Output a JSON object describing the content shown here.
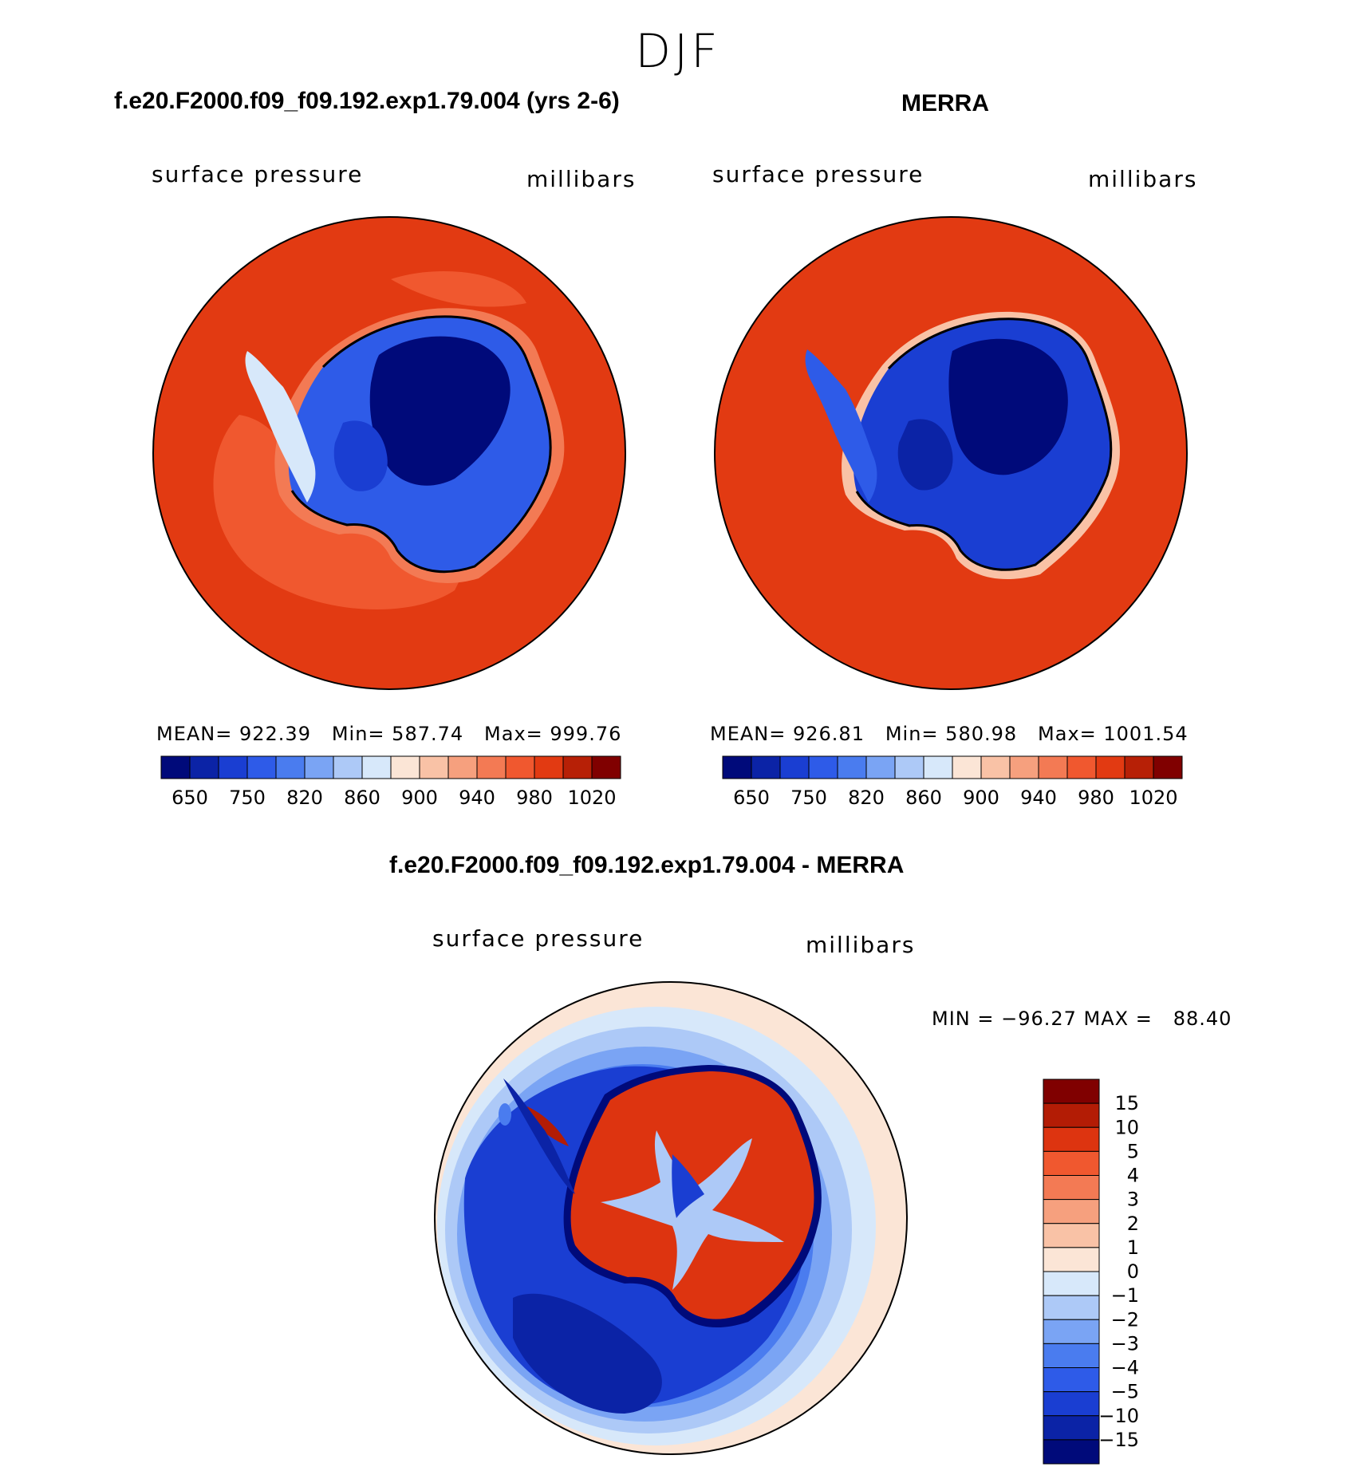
{
  "season": "DJF",
  "panels": [
    {
      "title": "f.e20.F2000.f09_f09.192.exp1.79.004 (yrs 2-6)",
      "left_label": "surface pressure",
      "right_label": "millibars",
      "stats": "MEAN= 922.39   Min= 587.74   Max= 999.76"
    },
    {
      "title": "MERRA",
      "left_label": "surface pressure",
      "right_label": "millibars",
      "stats": "MEAN= 926.81   Min= 580.98   Max= 1001.54"
    }
  ],
  "difference_panel": {
    "title": "f.e20.F2000.f09_f09.192.exp1.79.004 - MERRA",
    "left_label": "surface pressure",
    "right_label": "millibars",
    "stats": "MIN = −96.27 MAX =   88.40"
  },
  "chart_data": [
    {
      "type": "heatmap",
      "title": "f.e20.F2000.f09_f09.192.exp1.79.004 (yrs 2-6)",
      "projection": "south polar stereographic",
      "colorbar_orientation": "horizontal",
      "colorbar_levels": [
        "650",
        "700",
        "750",
        "800",
        "820",
        "840",
        "860",
        "880",
        "900",
        "920",
        "940",
        "960",
        "980",
        "1000",
        "1020"
      ],
      "colorbar_tick_labels": [
        "650",
        "750",
        "820",
        "860",
        "900",
        "940",
        "980",
        "1020"
      ],
      "colorbar_colors": [
        "#000a7a",
        "#0b23a6",
        "#1a3ed2",
        "#2e5be8",
        "#4a7cef",
        "#7aa4f4",
        "#adc9f7",
        "#d7e8fa",
        "#fbe5d6",
        "#f9c2a6",
        "#f6a07e",
        "#f37a54",
        "#f0582f",
        "#e23a12",
        "#b72006",
        "#800000"
      ],
      "mean": 922.39,
      "min": 587.74,
      "max": 999.76
    },
    {
      "type": "heatmap",
      "title": "MERRA",
      "projection": "south polar stereographic",
      "colorbar_orientation": "horizontal",
      "colorbar_levels": [
        "650",
        "700",
        "750",
        "800",
        "820",
        "840",
        "860",
        "880",
        "900",
        "920",
        "940",
        "960",
        "980",
        "1000",
        "1020"
      ],
      "colorbar_tick_labels": [
        "650",
        "750",
        "820",
        "860",
        "900",
        "940",
        "980",
        "1020"
      ],
      "colorbar_colors": [
        "#000a7a",
        "#0b23a6",
        "#1a3ed2",
        "#2e5be8",
        "#4a7cef",
        "#7aa4f4",
        "#adc9f7",
        "#d7e8fa",
        "#fbe5d6",
        "#f9c2a6",
        "#f6a07e",
        "#f37a54",
        "#f0582f",
        "#e23a12",
        "#b72006",
        "#800000"
      ],
      "mean": 926.81,
      "min": 580.98,
      "max": 1001.54
    },
    {
      "type": "heatmap",
      "title": "f.e20.F2000.f09_f09.192.exp1.79.004 - MERRA",
      "projection": "south polar stereographic",
      "colorbar_orientation": "vertical",
      "colorbar_tick_labels": [
        "15",
        "10",
        "5",
        "4",
        "3",
        "2",
        "1",
        "0",
        "−1",
        "−2",
        "−3",
        "−4",
        "−5",
        "−10",
        "−15"
      ],
      "colorbar_colors": [
        "#800000",
        "#b31c05",
        "#dd3410",
        "#f0582f",
        "#f37a54",
        "#f6a07e",
        "#f9c2a6",
        "#fbe5d6",
        "#d7e8fa",
        "#adc9f7",
        "#7aa4f4",
        "#4a7cef",
        "#2e5be8",
        "#1a3ed2",
        "#0b23a6",
        "#000a7a"
      ],
      "min": -96.27,
      "max": 88.4
    }
  ]
}
